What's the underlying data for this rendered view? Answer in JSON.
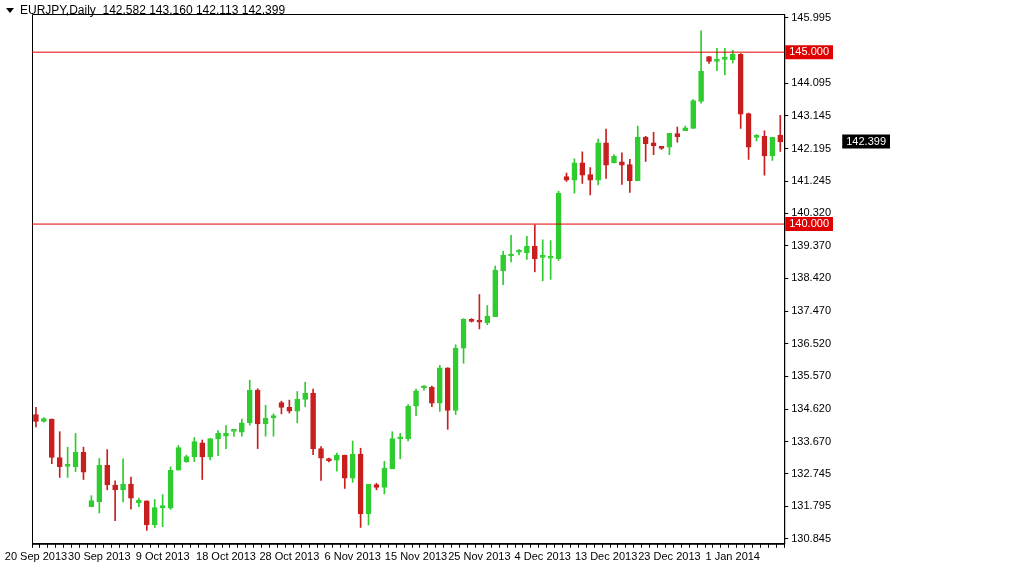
{
  "chart_data": {
    "type": "candlestick",
    "title": "EURJPY,Daily  142.582 143.160 142.113 142.399",
    "categories": [
      "20 Sep 2013",
      null,
      null,
      null,
      null,
      null,
      null,
      null,
      "30 Sep 2013",
      null,
      null,
      null,
      null,
      null,
      null,
      null,
      "9 Oct 2013",
      null,
      null,
      null,
      null,
      null,
      null,
      null,
      "18 Oct 2013",
      null,
      null,
      null,
      null,
      null,
      null,
      null,
      "28 Oct 2013",
      null,
      null,
      null,
      null,
      null,
      null,
      null,
      "6 Nov 2013",
      null,
      null,
      null,
      null,
      null,
      null,
      null,
      "15 Nov 2013",
      null,
      null,
      null,
      null,
      null,
      null,
      null,
      "25 Nov 2013",
      null,
      null,
      null,
      null,
      null,
      null,
      null,
      "4 Dec 2013",
      null,
      null,
      null,
      null,
      null,
      null,
      null,
      "13 Dec 2013",
      null,
      null,
      null,
      null,
      null,
      null,
      null,
      "23 Dec 2013",
      null,
      null,
      null,
      null,
      null,
      null,
      null,
      "1 Jan 2014",
      null,
      null,
      null,
      null,
      null,
      null
    ],
    "ohlc": [
      [
        134.46,
        134.67,
        134.1,
        134.26
      ],
      [
        134.26,
        134.37,
        134.24,
        134.34
      ],
      [
        134.33,
        134.33,
        133.03,
        133.21
      ],
      [
        133.21,
        133.96,
        132.63,
        132.94
      ],
      [
        132.95,
        133.51,
        132.63,
        132.96
      ],
      [
        132.94,
        133.91,
        132.8,
        133.36
      ],
      [
        133.36,
        133.51,
        132.57,
        132.78
      ],
      [
        131.78,
        132.1,
        131.78,
        131.96
      ],
      [
        131.92,
        133.18,
        131.6,
        132.98
      ],
      [
        132.98,
        133.44,
        132.27,
        132.41
      ],
      [
        132.41,
        132.53,
        131.37,
        132.27
      ],
      [
        132.27,
        133.17,
        131.92,
        132.44
      ],
      [
        132.44,
        132.64,
        131.71,
        132.03
      ],
      [
        131.89,
        132.03,
        131.78,
        131.97
      ],
      [
        131.95,
        131.95,
        131.09,
        131.25
      ],
      [
        131.25,
        131.99,
        131.17,
        131.75
      ],
      [
        131.75,
        132.13,
        131.2,
        131.76
      ],
      [
        131.74,
        132.94,
        131.7,
        132.84
      ],
      [
        132.84,
        133.56,
        132.84,
        133.5
      ],
      [
        133.09,
        133.28,
        133.07,
        133.24
      ],
      [
        133.23,
        133.79,
        133.09,
        133.67
      ],
      [
        133.64,
        133.72,
        132.57,
        133.23
      ],
      [
        133.23,
        133.76,
        133.14,
        133.76
      ],
      [
        133.75,
        133.99,
        133.26,
        133.91
      ],
      [
        133.83,
        134.14,
        133.47,
        133.91
      ],
      [
        133.97,
        133.98,
        133.82,
        133.98
      ],
      [
        133.95,
        134.33,
        133.83,
        134.22
      ],
      [
        134.22,
        135.46,
        134.15,
        135.17
      ],
      [
        135.17,
        135.21,
        133.47,
        134.19
      ],
      [
        134.19,
        134.73,
        133.83,
        134.36
      ],
      [
        134.36,
        134.48,
        133.83,
        134.43
      ],
      [
        134.81,
        134.85,
        134.48,
        134.67
      ],
      [
        134.67,
        134.88,
        134.5,
        134.56
      ],
      [
        134.56,
        135.13,
        134.22,
        134.9
      ],
      [
        134.9,
        135.4,
        134.69,
        135.08
      ],
      [
        135.08,
        135.2,
        133.29,
        133.47
      ],
      [
        133.47,
        133.53,
        132.54,
        133.19
      ],
      [
        133.13,
        133.19,
        133.08,
        133.12
      ],
      [
        133.13,
        133.34,
        132.81,
        133.28
      ],
      [
        133.28,
        133.28,
        132.31,
        132.61
      ],
      [
        132.61,
        133.69,
        132.49,
        133.31
      ],
      [
        133.31,
        133.48,
        131.18,
        131.57
      ],
      [
        131.57,
        132.43,
        131.25,
        132.43
      ],
      [
        132.42,
        132.46,
        132.27,
        132.34
      ],
      [
        132.34,
        133.1,
        132.15,
        132.9
      ],
      [
        132.88,
        133.96,
        132.88,
        133.76
      ],
      [
        133.75,
        133.91,
        133.17,
        133.76
      ],
      [
        133.75,
        134.75,
        133.69,
        134.7
      ],
      [
        134.7,
        135.2,
        134.43,
        135.15
      ],
      [
        135.24,
        135.3,
        135.17,
        135.25
      ],
      [
        135.25,
        135.29,
        134.69,
        134.79
      ],
      [
        134.79,
        135.89,
        134.55,
        135.82
      ],
      [
        135.82,
        135.82,
        134.03,
        134.58
      ],
      [
        134.58,
        136.49,
        134.46,
        136.39
      ],
      [
        136.39,
        137.25,
        135.95,
        137.23
      ],
      [
        137.23,
        137.25,
        137.15,
        137.17
      ],
      [
        137.16,
        137.95,
        136.95,
        137.15
      ],
      [
        137.13,
        137.63,
        137.07,
        137.32
      ],
      [
        137.31,
        138.78,
        137.31,
        138.66
      ],
      [
        138.64,
        139.21,
        138.24,
        139.09
      ],
      [
        139.07,
        139.67,
        138.9,
        139.08
      ],
      [
        139.18,
        139.26,
        139.1,
        139.19
      ],
      [
        139.16,
        139.64,
        138.97,
        139.35
      ],
      [
        139.35,
        139.97,
        138.61,
        138.99
      ],
      [
        139.03,
        139.54,
        138.35,
        139.04
      ],
      [
        139.01,
        139.52,
        138.39,
        139.03
      ],
      [
        138.99,
        140.95,
        138.94,
        140.9
      ],
      [
        141.38,
        141.48,
        141.24,
        141.28
      ],
      [
        141.28,
        141.9,
        140.9,
        141.78
      ],
      [
        141.78,
        142.1,
        141.18,
        141.42
      ],
      [
        141.44,
        141.64,
        140.85,
        141.28
      ],
      [
        141.28,
        142.47,
        141.14,
        142.36
      ],
      [
        142.36,
        142.76,
        141.33,
        141.71
      ],
      [
        141.78,
        142.02,
        141.78,
        141.97
      ],
      [
        141.81,
        142.07,
        141.15,
        141.71
      ],
      [
        141.73,
        141.88,
        140.92,
        141.26
      ],
      [
        141.26,
        142.85,
        141.26,
        142.53
      ],
      [
        142.53,
        142.55,
        141.82,
        142.34
      ],
      [
        142.36,
        142.67,
        142.02,
        142.28
      ],
      [
        142.22,
        142.24,
        142.17,
        142.2
      ],
      [
        142.24,
        142.64,
        142.02,
        142.64
      ],
      [
        142.63,
        142.82,
        142.38,
        142.54
      ],
      [
        142.72,
        142.85,
        142.72,
        142.8
      ],
      [
        142.78,
        143.62,
        142.78,
        143.59
      ],
      [
        143.57,
        145.62,
        143.52,
        144.44
      ],
      [
        144.87,
        144.87,
        144.67,
        144.73
      ],
      [
        144.73,
        145.11,
        144.46,
        144.79
      ],
      [
        144.79,
        145.11,
        144.34,
        144.8
      ],
      [
        144.78,
        145.05,
        144.69,
        144.94
      ],
      [
        144.94,
        144.96,
        142.78,
        143.2
      ],
      [
        143.21,
        143.23,
        141.88,
        142.24
      ],
      [
        142.52,
        142.6,
        142.42,
        142.58
      ],
      [
        142.55,
        142.71,
        141.42,
        141.98
      ],
      [
        141.98,
        142.52,
        141.85,
        142.52
      ],
      [
        142.582,
        143.16,
        142.113,
        142.399
      ]
    ],
    "colors": [
      "#c81e1e",
      "#2fcc2f",
      "#c81e1e",
      "#c81e1e",
      "#2fcc2f",
      "#2fcc2f",
      "#c81e1e",
      "#2fcc2f",
      "#2fcc2f",
      "#c81e1e",
      "#c81e1e",
      "#2fcc2f",
      "#c81e1e",
      "#2fcc2f",
      "#c81e1e",
      "#2fcc2f",
      "#2fcc2f",
      "#2fcc2f",
      "#2fcc2f",
      "#2fcc2f",
      "#2fcc2f",
      "#c81e1e",
      "#2fcc2f",
      "#2fcc2f",
      "#2fcc2f",
      "#2fcc2f",
      "#2fcc2f",
      "#2fcc2f",
      "#c81e1e",
      "#2fcc2f",
      "#2fcc2f",
      "#c81e1e",
      "#c81e1e",
      "#2fcc2f",
      "#2fcc2f",
      "#c81e1e",
      "#c81e1e",
      "#c81e1e",
      "#2fcc2f",
      "#c81e1e",
      "#2fcc2f",
      "#c81e1e",
      "#2fcc2f",
      "#c81e1e",
      "#2fcc2f",
      "#2fcc2f",
      "#2fcc2f",
      "#2fcc2f",
      "#2fcc2f",
      "#2fcc2f",
      "#c81e1e",
      "#2fcc2f",
      "#c81e1e",
      "#2fcc2f",
      "#2fcc2f",
      "#c81e1e",
      "#c81e1e",
      "#2fcc2f",
      "#2fcc2f",
      "#2fcc2f",
      "#2fcc2f",
      "#2fcc2f",
      "#2fcc2f",
      "#c81e1e",
      "#2fcc2f",
      "#2fcc2f",
      "#2fcc2f",
      "#c81e1e",
      "#2fcc2f",
      "#c81e1e",
      "#c81e1e",
      "#2fcc2f",
      "#c81e1e",
      "#2fcc2f",
      "#c81e1e",
      "#c81e1e",
      "#2fcc2f",
      "#c81e1e",
      "#c81e1e",
      "#c81e1e",
      "#2fcc2f",
      "#c81e1e",
      "#2fcc2f",
      "#2fcc2f",
      "#2fcc2f",
      "#c81e1e",
      "#2fcc2f",
      "#2fcc2f",
      "#2fcc2f",
      "#c81e1e",
      "#c81e1e",
      "#2fcc2f",
      "#c81e1e",
      "#2fcc2f",
      "#c81e1e"
    ],
    "ylim": [
      130.7,
      146.11
    ],
    "yticks": [
      {
        "value": 130.845,
        "label": "130.845"
      },
      {
        "value": 131.795,
        "label": "131.795"
      },
      {
        "value": 132.745,
        "label": "132.745"
      },
      {
        "value": 133.67,
        "label": "133.670"
      },
      {
        "value": 134.62,
        "label": "134.620"
      },
      {
        "value": 135.57,
        "label": "135.570"
      },
      {
        "value": 136.52,
        "label": "136.520"
      },
      {
        "value": 137.47,
        "label": "137.470"
      },
      {
        "value": 138.42,
        "label": "138.420"
      },
      {
        "value": 139.37,
        "label": "139.370"
      },
      {
        "value": 140.32,
        "label": "140.320"
      },
      {
        "value": 141.245,
        "label": "141.245"
      },
      {
        "value": 142.195,
        "label": "142.195"
      },
      {
        "value": 143.145,
        "label": "143.145"
      },
      {
        "value": 144.095,
        "label": "144.095"
      },
      {
        "value": 145.995,
        "label": "145.995"
      }
    ],
    "ref_lines": [
      {
        "axis": "y",
        "value": 145,
        "label": "145.000",
        "color": "#e00000"
      },
      {
        "axis": "y",
        "value": 140,
        "label": "140.000",
        "color": "#e00000"
      }
    ],
    "annotations": [
      "142.399"
    ]
  }
}
